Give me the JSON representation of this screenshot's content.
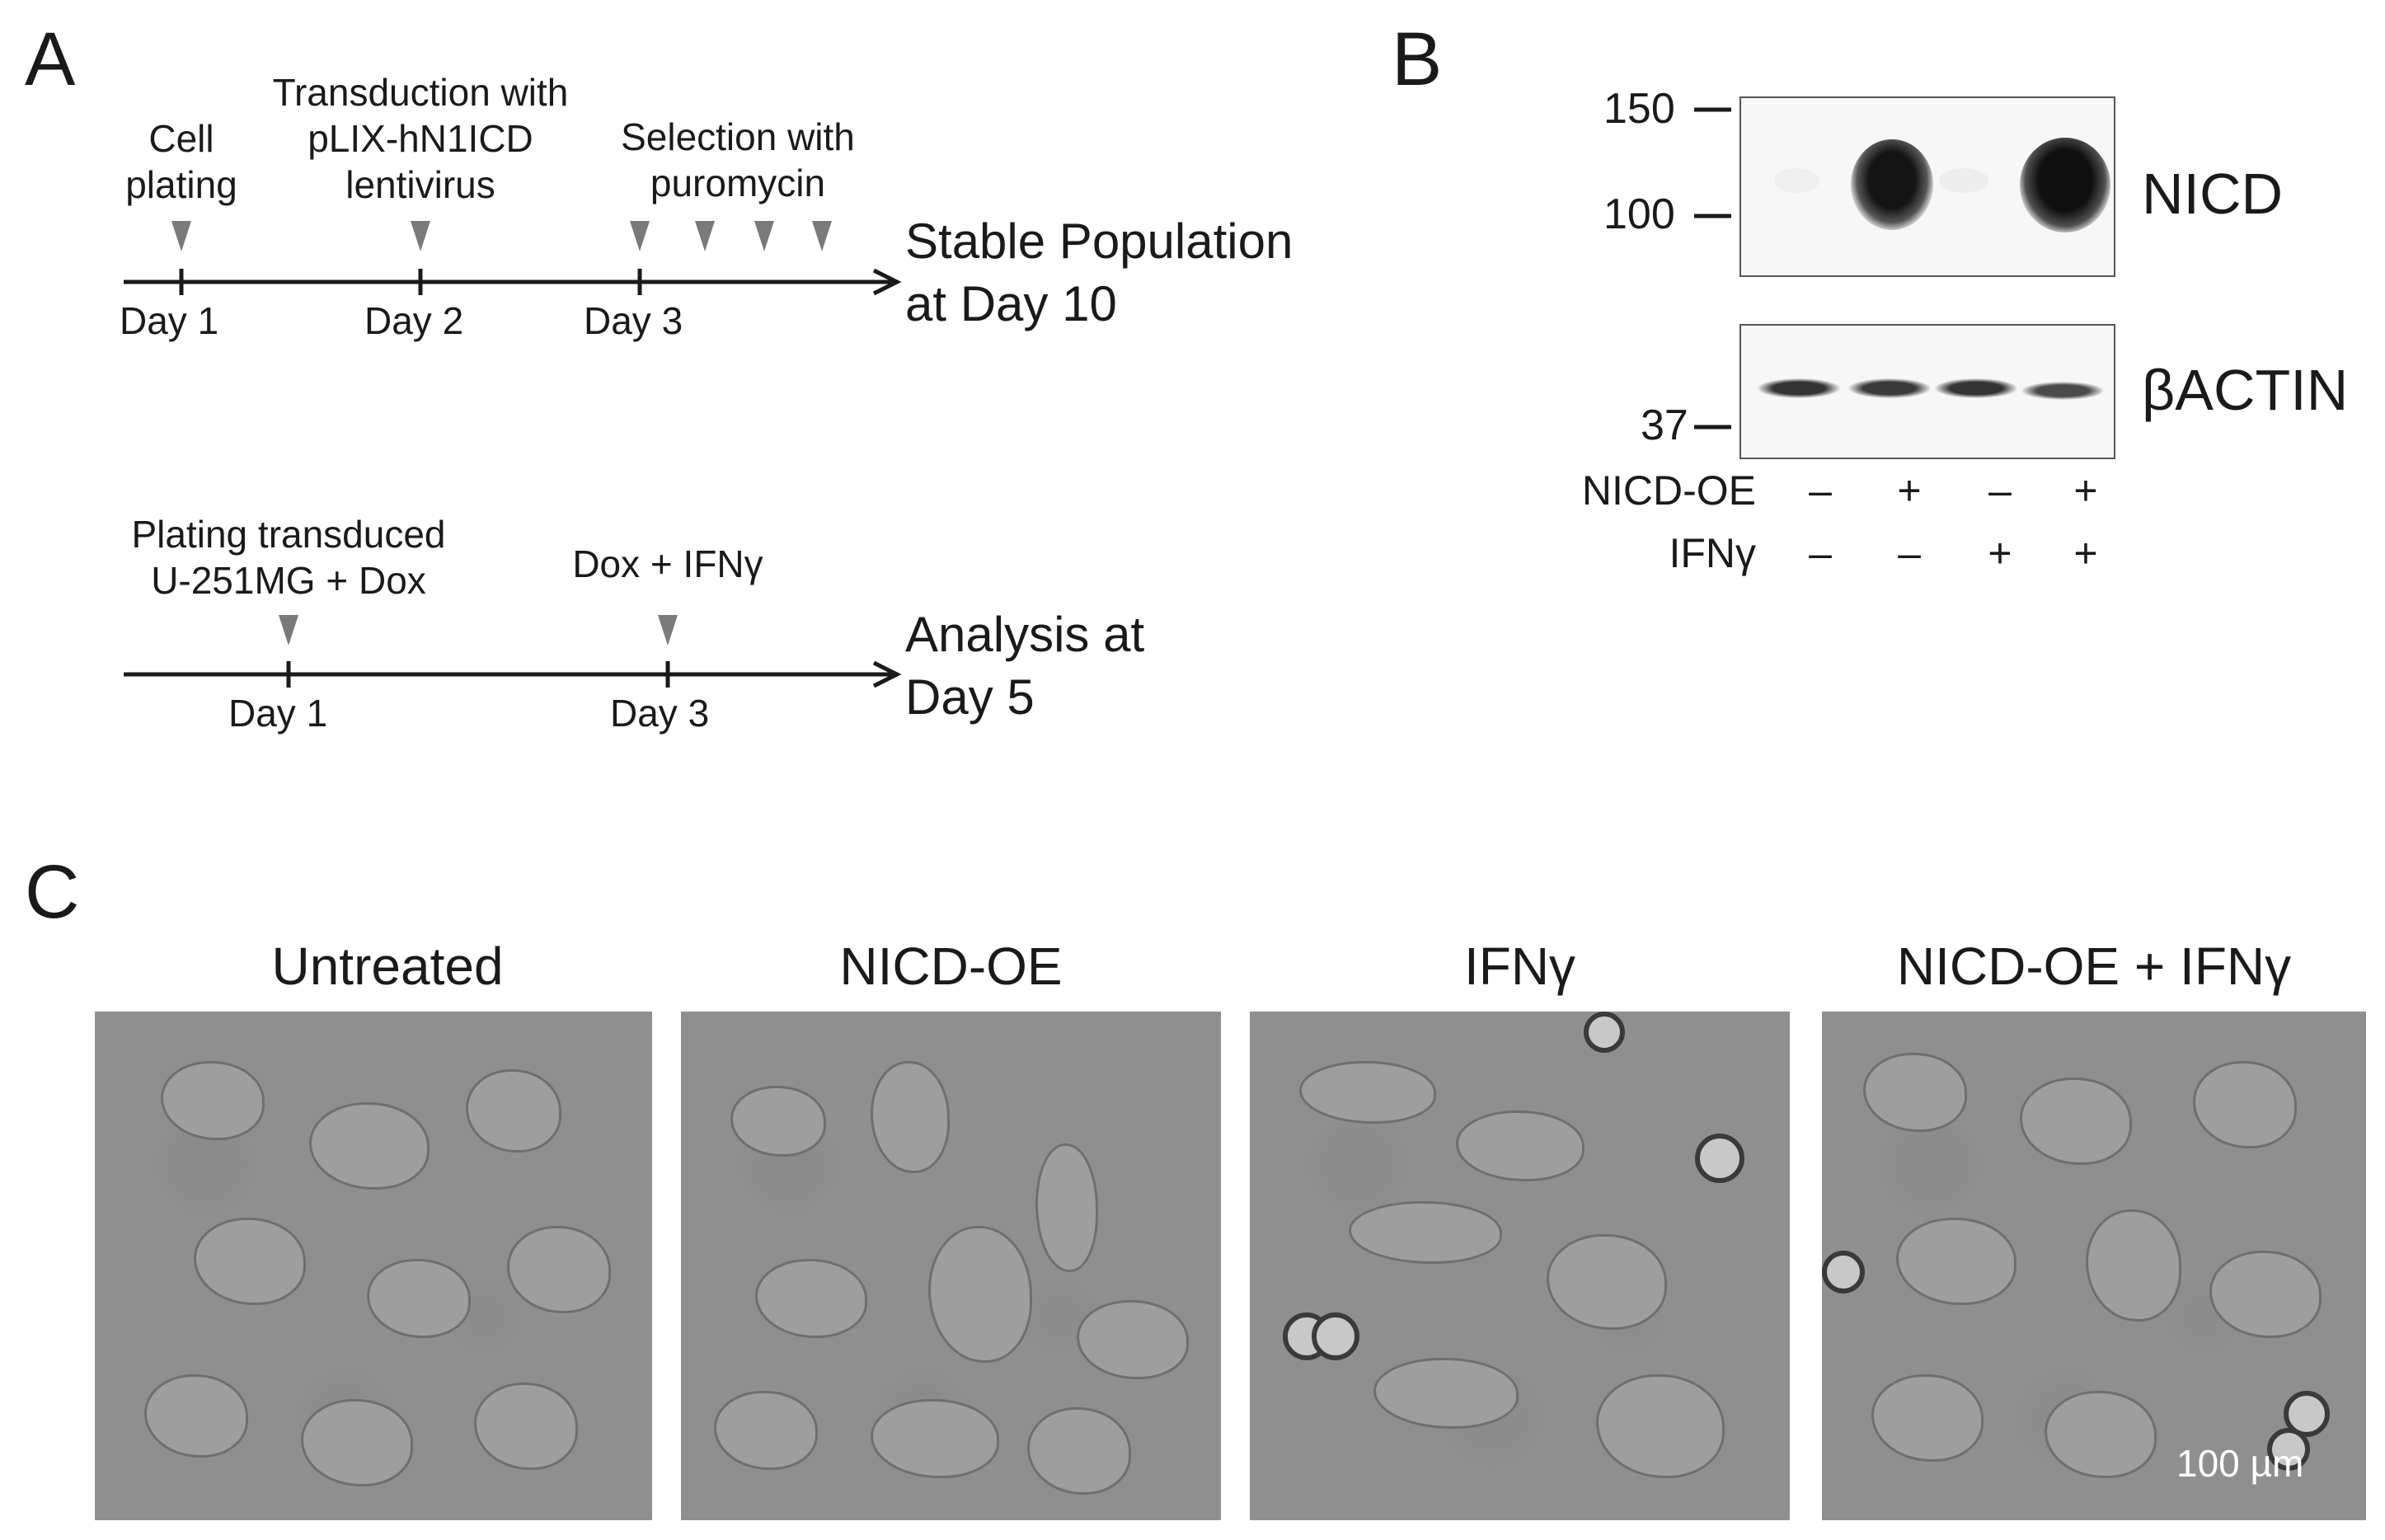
{
  "panels": {
    "a": "A",
    "b": "B",
    "c": "C"
  },
  "timeline1": {
    "events": [
      "Cell\nplating",
      "Transduction with\npLIX-hN1ICD\nlentivirus",
      "Selection with\npuromycin"
    ],
    "days": [
      "Day 1",
      "Day 2",
      "Day 3"
    ],
    "end_label": "Stable Population\nat Day 10"
  },
  "timeline2": {
    "events": [
      "Plating transduced\nU-251MG + Dox",
      "Dox + IFNγ"
    ],
    "days": [
      "Day 1",
      "Day 3"
    ],
    "end_label": "Analysis at\nDay 5"
  },
  "blot": {
    "mw_markers": [
      "150",
      "100",
      "37"
    ],
    "proteins": [
      "NICD",
      "βACTIN"
    ],
    "conditions": [
      {
        "label": "NICD-OE",
        "signs": [
          "–",
          "+",
          "–",
          "+"
        ]
      },
      {
        "label": "IFNγ",
        "signs": [
          "–",
          "–",
          "+",
          "+"
        ]
      }
    ]
  },
  "micrographs": {
    "titles": [
      "Untreated",
      "NICD-OE",
      "IFNγ",
      "NICD-OE + IFNγ"
    ],
    "scale_bar": "100 µm"
  },
  "colors": {
    "arrowhead": "#7a7a7a",
    "line": "#1a1a1a",
    "micro_bg": "#8f8f8f"
  }
}
